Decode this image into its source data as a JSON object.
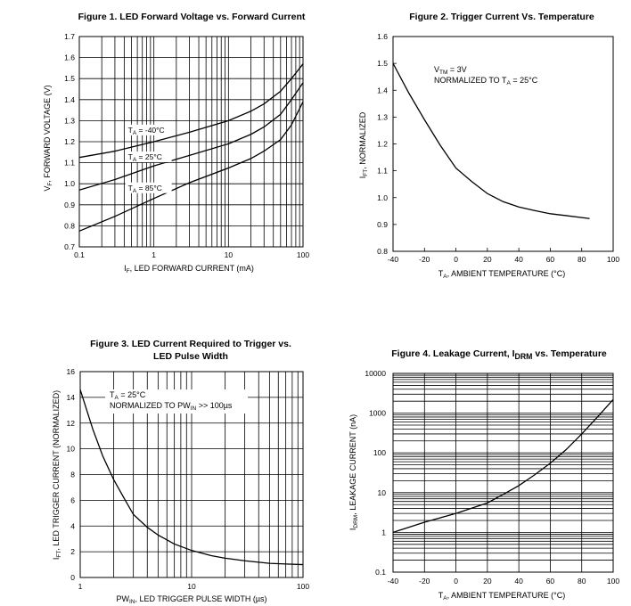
{
  "chart_data": [
    {
      "type": "line",
      "title": "Figure 1. LED Forward Voltage vs. Forward Current",
      "xlabel": "I_F, LED FORWARD CURRENT (mA)",
      "ylabel": "V_F, FORWARD VOLTAGE (V)",
      "x_scale": "log",
      "xlim": [
        0.1,
        100
      ],
      "ylim": [
        0.7,
        1.7
      ],
      "x_ticks": [
        "0.1",
        "1",
        "10",
        "100"
      ],
      "y_ticks": [
        "0.7",
        "0.8",
        "0.9",
        "1.0",
        "1.1",
        "1.2",
        "1.3",
        "1.4",
        "1.5",
        "1.6",
        "1.7"
      ],
      "grid": true,
      "series": [
        {
          "name": "T_A = -40°C",
          "x": [
            0.1,
            0.3,
            1,
            3,
            10,
            20,
            30,
            50,
            70,
            100
          ],
          "values": [
            1.125,
            1.155,
            1.2,
            1.245,
            1.3,
            1.345,
            1.38,
            1.44,
            1.5,
            1.57
          ]
        },
        {
          "name": "T_A = 25°C",
          "x": [
            0.1,
            0.3,
            1,
            3,
            10,
            20,
            30,
            50,
            70,
            100
          ],
          "values": [
            0.97,
            1.02,
            1.085,
            1.135,
            1.19,
            1.235,
            1.27,
            1.33,
            1.4,
            1.48
          ]
        },
        {
          "name": "T_A = 85°C",
          "x": [
            0.1,
            0.3,
            1,
            3,
            10,
            20,
            30,
            50,
            70,
            100
          ],
          "values": [
            0.775,
            0.845,
            0.93,
            1.005,
            1.075,
            1.12,
            1.155,
            1.21,
            1.28,
            1.39
          ]
        }
      ],
      "annotations": {
        "label_prefix": "T",
        "label_sub": "A",
        "labels": [
          " = -40°C",
          " = 25°C",
          " = 85°C"
        ]
      }
    },
    {
      "type": "line",
      "title": "Figure 2. Trigger Current Vs. Temperature",
      "xlabel": "T_A, AMBIENT TEMPERATURE (°C)",
      "ylabel": "I_FT, NORMALIZED",
      "xlim": [
        -40,
        100
      ],
      "ylim": [
        0.8,
        1.6
      ],
      "x_ticks": [
        "-40",
        "-20",
        "0",
        "20",
        "40",
        "60",
        "80",
        "100"
      ],
      "y_ticks": [
        "0.8",
        "0.9",
        "1.0",
        "1.1",
        "1.2",
        "1.3",
        "1.4",
        "1.5",
        "1.6"
      ],
      "grid": false,
      "series": [
        {
          "x": [
            -40,
            -30,
            -20,
            -10,
            0,
            10,
            20,
            30,
            40,
            50,
            60,
            70,
            85
          ],
          "values": [
            1.5,
            1.39,
            1.29,
            1.195,
            1.11,
            1.06,
            1.015,
            0.985,
            0.965,
            0.952,
            0.94,
            0.933,
            0.922
          ]
        }
      ],
      "annotations": {
        "line1_a": "V",
        "line1_sub": "TM",
        "line1_b": " = 3V",
        "line2_a": "NORMALIZED TO T",
        "line2_sub": "A",
        "line2_b": " = 25°C"
      }
    },
    {
      "type": "line",
      "title": "Figure 3. LED Current Required to Trigger vs. LED Pulse Width",
      "xlabel": "PW_IN, LED TRIGGER PULSE WIDTH (µs)",
      "ylabel": "I_FT, LED TRIGGER CURRENT (NORMALIZED)",
      "x_scale": "log",
      "xlim": [
        1,
        100
      ],
      "ylim": [
        0,
        16
      ],
      "x_ticks": [
        "1",
        "10",
        "100"
      ],
      "y_ticks": [
        "0",
        "2",
        "4",
        "6",
        "8",
        "10",
        "12",
        "14",
        "16"
      ],
      "grid": true,
      "series": [
        {
          "x": [
            1,
            1.3,
            1.6,
            2,
            2.5,
            3,
            4,
            5,
            7,
            10,
            15,
            20,
            30,
            50,
            70,
            100
          ],
          "values": [
            14.6,
            11.5,
            9.4,
            7.6,
            6.1,
            4.9,
            3.9,
            3.3,
            2.6,
            2.1,
            1.7,
            1.5,
            1.3,
            1.1,
            1.05,
            1.0
          ]
        }
      ],
      "annotations": {
        "line1_a": "T",
        "line1_sub": "A",
        "line1_b": " = 25°C",
        "line2_a": "NORMALIZED TO PW",
        "line2_sub": "IN",
        "line2_b": " >> 100µs"
      }
    },
    {
      "type": "line",
      "title": "Figure 4. Leakage Current, I_DRM vs. Temperature",
      "xlabel": "T_A, AMBIENT TEMPERATURE (°C)",
      "ylabel": "I_DRM, LEAKAGE CURRENT (nA)",
      "y_scale": "log",
      "xlim": [
        -40,
        100
      ],
      "ylim": [
        0.1,
        10000
      ],
      "x_ticks": [
        "-40",
        "-20",
        "0",
        "20",
        "40",
        "60",
        "80",
        "100"
      ],
      "y_ticks": [
        "0.1",
        "1",
        "10",
        "100",
        "1000",
        "10000"
      ],
      "grid": true,
      "series": [
        {
          "x": [
            -40,
            -20,
            0,
            20,
            30,
            40,
            50,
            60,
            70,
            80,
            90,
            100
          ],
          "values": [
            1.0,
            1.8,
            3.0,
            5.5,
            9,
            15,
            28,
            55,
            120,
            300,
            800,
            2200
          ]
        }
      ]
    }
  ],
  "labels": {
    "fig1": {
      "title": "Figure 1. LED Forward Voltage vs. Forward Current",
      "ylabel_a": "V",
      "ylabel_sub": "F",
      "ylabel_b": ", FORWARD VOLTAGE (V)",
      "xlabel_a": "I",
      "xlabel_sub": "F",
      "xlabel_b": ", LED FORWARD CURRENT (mA)"
    },
    "fig2": {
      "title": "Figure 2. Trigger Current Vs. Temperature",
      "ylabel_a": "I",
      "ylabel_sub": "FT",
      "ylabel_b": ", NORMALIZED",
      "xlabel_a": "T",
      "xlabel_sub": "A",
      "xlabel_b": ", AMBIENT TEMPERATURE (°C)"
    },
    "fig3": {
      "title_line1": "Figure 3. LED Current Required to Trigger vs.",
      "title_line2": "LED Pulse Width",
      "ylabel_a": "I",
      "ylabel_sub": "FT",
      "ylabel_b": ", LED TRIGGER CURRENT (NORMALIZED)",
      "xlabel_a": "PW",
      "xlabel_sub": "IN",
      "xlabel_b": ", LED TRIGGER PULSE WIDTH (µs)"
    },
    "fig4": {
      "title_a": "Figure 4. Leakage Current, I",
      "title_sub": "DRM",
      "title_b": " vs. Temperature",
      "ylabel_a": "I",
      "ylabel_sub": "DRM",
      "ylabel_b": ", LEAKAGE CURRENT (nA)",
      "xlabel_a": "T",
      "xlabel_sub": "A",
      "xlabel_b": ", AMBIENT TEMPERATURE (°C)"
    }
  }
}
